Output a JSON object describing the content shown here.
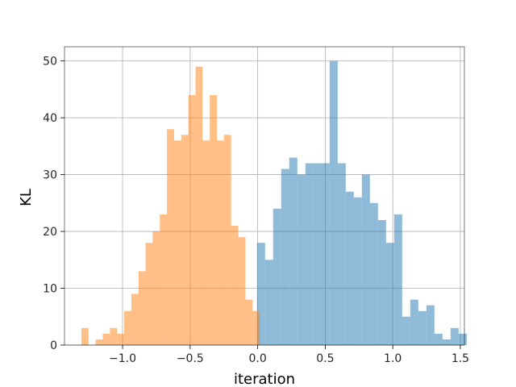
{
  "chart_data": {
    "type": "histogram",
    "title": "",
    "xlabel": "iteration",
    "ylabel": "KL",
    "xlim": [
      -1.43,
      1.53
    ],
    "ylim": [
      0,
      52.5
    ],
    "grid": true,
    "xticks": [
      -1.0,
      -0.5,
      0.0,
      0.5,
      1.0,
      1.5
    ],
    "xtick_labels": [
      "−1.0",
      "−0.5",
      "0.0",
      "0.5",
      "1.0",
      "1.5"
    ],
    "yticks": [
      0,
      10,
      20,
      30,
      40,
      50
    ],
    "ytick_labels": [
      "0",
      "10",
      "20",
      "30",
      "40",
      "50"
    ],
    "series": [
      {
        "color": "#1f77b4",
        "opacity": 0.5,
        "bin_start": -0.005,
        "bin_width": 0.0597,
        "counts": [
          18,
          15,
          24,
          31,
          33,
          30,
          32,
          32,
          32,
          50,
          32,
          27,
          26,
          30,
          25,
          22,
          18,
          23,
          5,
          8,
          6,
          7,
          2,
          1,
          3,
          2
        ]
      },
      {
        "color": "#ff7f0e",
        "opacity": 0.5,
        "bin_start": -1.305,
        "bin_width": 0.0528,
        "counts": [
          3,
          0,
          1,
          2,
          3,
          2,
          6,
          9,
          13,
          18,
          20,
          23,
          38,
          36,
          37,
          44,
          49,
          36,
          44,
          36,
          37,
          21,
          19,
          8,
          6
        ]
      }
    ]
  }
}
